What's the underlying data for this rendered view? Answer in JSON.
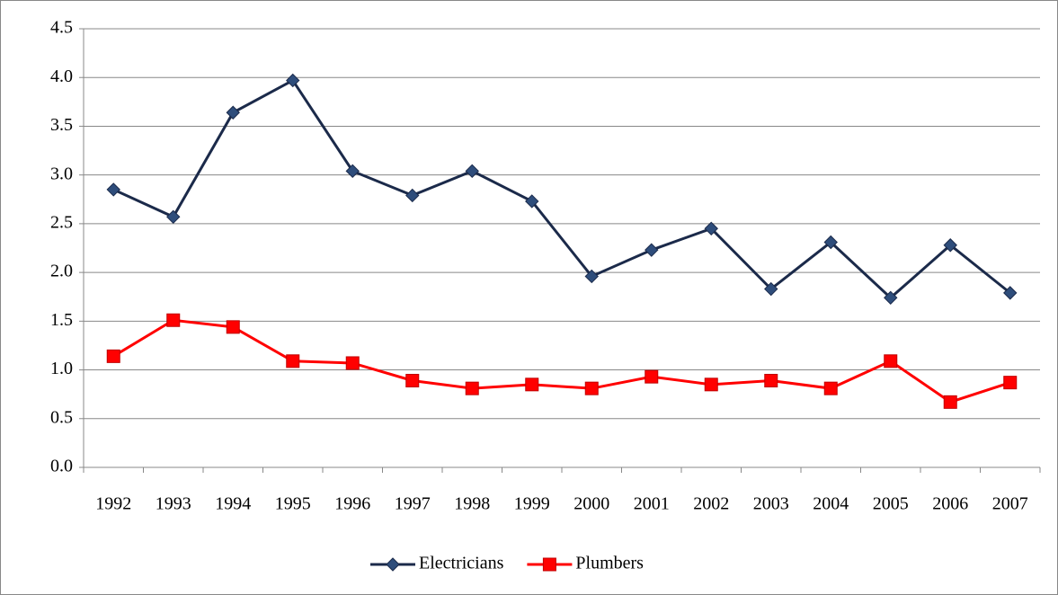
{
  "chart_data": {
    "type": "line",
    "categories": [
      "1992",
      "1993",
      "1994",
      "1995",
      "1996",
      "1997",
      "1998",
      "1999",
      "2000",
      "2001",
      "2002",
      "2003",
      "2004",
      "2005",
      "2006",
      "2007"
    ],
    "series": [
      {
        "name": "Electricians",
        "color": "#1b2a4a",
        "marker": "diamond",
        "marker_color": "#2e4d7b",
        "values": [
          2.85,
          2.57,
          3.64,
          3.97,
          3.04,
          2.79,
          3.04,
          2.73,
          1.96,
          2.23,
          2.45,
          1.83,
          2.31,
          1.74,
          2.28,
          1.79
        ]
      },
      {
        "name": "Plumbers",
        "color": "#ff0000",
        "marker": "square",
        "marker_color": "#ff0000",
        "values": [
          1.14,
          1.51,
          1.44,
          1.09,
          1.07,
          0.89,
          0.81,
          0.85,
          0.81,
          0.93,
          0.85,
          0.89,
          0.81,
          1.09,
          0.67,
          0.87
        ]
      }
    ],
    "ylim": [
      0,
      4.5
    ],
    "yticks": [
      {
        "value": 0,
        "label": "0.0"
      },
      0.5,
      {
        "value": 1,
        "label": "1.0"
      },
      1.5,
      {
        "value": 2,
        "label": "2.0"
      },
      2.5,
      {
        "value": 3,
        "label": "3.0"
      },
      3.5,
      {
        "value": 4,
        "label": "4.0"
      },
      4.5
    ],
    "grid": true,
    "legend": "bottom"
  }
}
